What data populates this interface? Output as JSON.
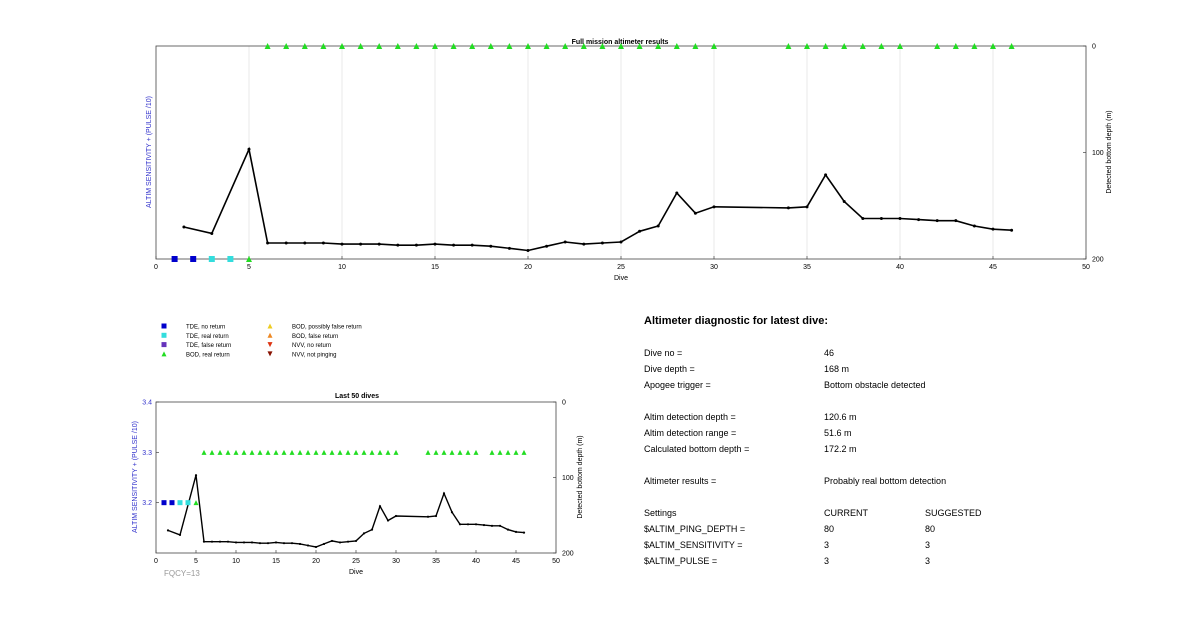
{
  "chart_data": [
    {
      "type": "line",
      "title": "Full mission altimeter results",
      "xlabel": "Dive",
      "ylabel": "ALTIM SENSITIVITY + (PULSE /10)",
      "y2label": "Detected bottom depth (m)",
      "xlim": [
        0,
        50
      ],
      "xticks": [
        "0",
        "5",
        "10",
        "15",
        "20",
        "25",
        "30",
        "35",
        "40",
        "45",
        "50"
      ],
      "y2lim": [
        0,
        200
      ],
      "y2ticks": [
        "0",
        "100",
        "200"
      ],
      "y2_reversed": true,
      "grid": "vertical",
      "series": [
        {
          "name": "Detected bottom depth",
          "color": "#000000",
          "points": [
            [
              1.5,
              170
            ],
            [
              3,
              176
            ],
            [
              5,
              97
            ],
            [
              6,
              185
            ],
            [
              7,
              185
            ],
            [
              8,
              185
            ],
            [
              9,
              185
            ],
            [
              10,
              186
            ],
            [
              11,
              186
            ],
            [
              12,
              186
            ],
            [
              13,
              187
            ],
            [
              14,
              187
            ],
            [
              15,
              186
            ],
            [
              16,
              187
            ],
            [
              17,
              187
            ],
            [
              18,
              188
            ],
            [
              19,
              190
            ],
            [
              20,
              192
            ],
            [
              21,
              188
            ],
            [
              22,
              184
            ],
            [
              23,
              186
            ],
            [
              24,
              185
            ],
            [
              25,
              184
            ],
            [
              26,
              174
            ],
            [
              27,
              169
            ],
            [
              28,
              138
            ],
            [
              29,
              157
            ],
            [
              30,
              151
            ],
            [
              34,
              152
            ],
            [
              35,
              151
            ],
            [
              36,
              121
            ],
            [
              37,
              146
            ],
            [
              38,
              162
            ],
            [
              39,
              162
            ],
            [
              40,
              162
            ],
            [
              41,
              163
            ],
            [
              42,
              164
            ],
            [
              43,
              164
            ],
            [
              44,
              169
            ],
            [
              45,
              172
            ],
            [
              46,
              173
            ]
          ]
        },
        {
          "name": "BOD, real return",
          "color": "#22dd22",
          "marker": "triangle-up",
          "x": [
            6,
            7,
            8,
            9,
            10,
            11,
            12,
            13,
            14,
            15,
            16,
            17,
            18,
            19,
            20,
            21,
            22,
            23,
            24,
            25,
            26,
            27,
            28,
            29,
            30,
            34,
            35,
            36,
            37,
            38,
            39,
            40,
            42,
            43,
            44,
            45,
            46
          ],
          "depth": 0
        },
        {
          "name": "TDE, no return",
          "color": "#0000cc",
          "marker": "square",
          "x": [
            1,
            2
          ],
          "depth": 200
        },
        {
          "name": "TDE, real return",
          "color": "#33dddd",
          "marker": "square",
          "x": [
            3,
            4
          ],
          "depth": 200
        },
        {
          "name": "BOD, real return",
          "color": "#22dd22",
          "marker": "triangle-up",
          "x": [
            5
          ],
          "depth": 200
        }
      ]
    },
    {
      "type": "line",
      "title": "Last 50 dives",
      "xlabel": "Dive",
      "ylabel": "ALTIM SENSITIVITY + (PULSE /10)",
      "y2label": "Detected bottom depth (m)",
      "xlim": [
        0,
        50
      ],
      "xticks": [
        "0",
        "5",
        "10",
        "15",
        "20",
        "25",
        "30",
        "35",
        "40",
        "45",
        "50"
      ],
      "ylim": [
        3.1,
        3.4
      ],
      "yticks": [
        "3.2",
        "3.3",
        "3.4"
      ],
      "y2lim": [
        0,
        200
      ],
      "y2ticks": [
        "0",
        "100",
        "200"
      ],
      "y2_reversed": true,
      "annotation": "FQCY=13",
      "series": [
        {
          "name": "Detected bottom depth",
          "color": "#000000",
          "points": [
            [
              1.5,
              170
            ],
            [
              3,
              176
            ],
            [
              5,
              97
            ],
            [
              6,
              185
            ],
            [
              7,
              185
            ],
            [
              8,
              185
            ],
            [
              9,
              185
            ],
            [
              10,
              186
            ],
            [
              11,
              186
            ],
            [
              12,
              186
            ],
            [
              13,
              187
            ],
            [
              14,
              187
            ],
            [
              15,
              186
            ],
            [
              16,
              187
            ],
            [
              17,
              187
            ],
            [
              18,
              188
            ],
            [
              19,
              190
            ],
            [
              20,
              192
            ],
            [
              21,
              188
            ],
            [
              22,
              184
            ],
            [
              23,
              186
            ],
            [
              24,
              185
            ],
            [
              25,
              184
            ],
            [
              26,
              174
            ],
            [
              27,
              169
            ],
            [
              28,
              138
            ],
            [
              29,
              157
            ],
            [
              30,
              151
            ],
            [
              34,
              152
            ],
            [
              35,
              151
            ],
            [
              36,
              121
            ],
            [
              37,
              146
            ],
            [
              38,
              162
            ],
            [
              39,
              162
            ],
            [
              40,
              162
            ],
            [
              41,
              163
            ],
            [
              42,
              164
            ],
            [
              43,
              164
            ],
            [
              44,
              169
            ],
            [
              45,
              172
            ],
            [
              46,
              173
            ]
          ]
        },
        {
          "name": "BOD, real return",
          "color": "#22dd22",
          "marker": "triangle-up",
          "x": [
            6,
            7,
            8,
            9,
            10,
            11,
            12,
            13,
            14,
            15,
            16,
            17,
            18,
            19,
            20,
            21,
            22,
            23,
            24,
            25,
            26,
            27,
            28,
            29,
            30,
            34,
            35,
            36,
            37,
            38,
            39,
            40,
            42,
            43,
            44,
            45,
            46
          ],
          "value": 3.3
        },
        {
          "name": "TDE, no return",
          "color": "#0000cc",
          "marker": "square",
          "x": [
            1,
            2
          ],
          "value": 3.2
        },
        {
          "name": "TDE, real return",
          "color": "#33dddd",
          "marker": "square",
          "x": [
            3,
            4
          ],
          "value": 3.2
        },
        {
          "name": "BOD, real return",
          "color": "#22dd22",
          "marker": "triangle-up",
          "x": [
            5
          ],
          "value": 3.2
        }
      ]
    }
  ],
  "legend": {
    "items": [
      {
        "label": "TDE, no return",
        "color": "#0000cc",
        "marker": "square"
      },
      {
        "label": "TDE, real return",
        "color": "#33dddd",
        "marker": "square"
      },
      {
        "label": "TDE, false return",
        "color": "#6633bb",
        "marker": "square"
      },
      {
        "label": "BOD, real return",
        "color": "#22dd22",
        "marker": "triangle-up"
      },
      {
        "label": "BOD, possibly false return",
        "color": "#eecc22",
        "marker": "triangle-up"
      },
      {
        "label": "BOD, false return",
        "color": "#ee8822",
        "marker": "triangle-up"
      },
      {
        "label": "NVV, no return",
        "color": "#dd3311",
        "marker": "triangle-down"
      },
      {
        "label": "NVV, not pinging",
        "color": "#881100",
        "marker": "triangle-down"
      }
    ]
  },
  "diagnostic": {
    "title": "Altimeter diagnostic for latest dive:",
    "rows": [
      {
        "label": "Dive no =",
        "value": "46"
      },
      {
        "label": "Dive depth =",
        "value": "168 m"
      },
      {
        "label": "Apogee trigger =",
        "value": "Bottom obstacle detected"
      },
      {
        "label": "Altim detection depth =",
        "value": "120.6 m"
      },
      {
        "label": "Altim detection range =",
        "value": "51.6 m"
      },
      {
        "label": "Calculated bottom depth =",
        "value": "172.2 m"
      },
      {
        "label": "Altimeter results =",
        "value": "Probably real bottom detection"
      }
    ],
    "settings": {
      "header": {
        "label": "Settings",
        "current": "CURRENT",
        "suggested": "SUGGESTED"
      },
      "rows": [
        {
          "label": "$ALTIM_PING_DEPTH =",
          "current": "80",
          "suggested": "80"
        },
        {
          "label": "$ALTIM_SENSITIVITY =",
          "current": "3",
          "suggested": "3"
        },
        {
          "label": "$ALTIM_PULSE =",
          "current": "3",
          "suggested": "3"
        }
      ]
    }
  }
}
